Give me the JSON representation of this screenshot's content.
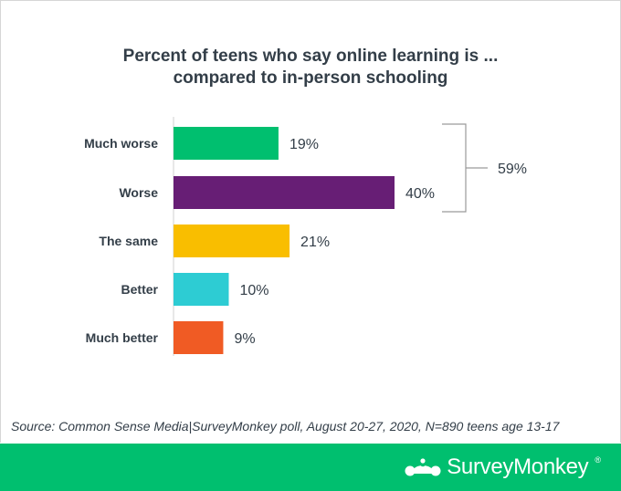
{
  "chart_data": {
    "type": "bar",
    "orientation": "horizontal",
    "title": [
      "Percent of teens who say online learning is ...",
      "compared to in-person schooling"
    ],
    "categories": [
      "Much worse",
      "Worse",
      "The same",
      "Better",
      "Much better"
    ],
    "values": [
      19,
      40,
      21,
      10,
      9
    ],
    "value_labels": [
      "19%",
      "40%",
      "21%",
      "10%",
      "9%"
    ],
    "colors": [
      "#00bf6f",
      "#671e75",
      "#f9be00",
      "#2dccd3",
      "#f05b24"
    ],
    "xlim": [
      0,
      40
    ],
    "grid": false,
    "annotations": [
      {
        "type": "bracket",
        "spans": [
          "Much worse",
          "Worse"
        ],
        "label": "59%"
      }
    ]
  },
  "source": "Source: Common Sense Media|SurveyMonkey poll, August 20-27, 2020, N=890 teens age 13-17",
  "footer": {
    "brand": "SurveyMonkey",
    "trademark": "®",
    "background": "#00bf6f",
    "logo_icon": "surveymonkey-logo-icon"
  }
}
